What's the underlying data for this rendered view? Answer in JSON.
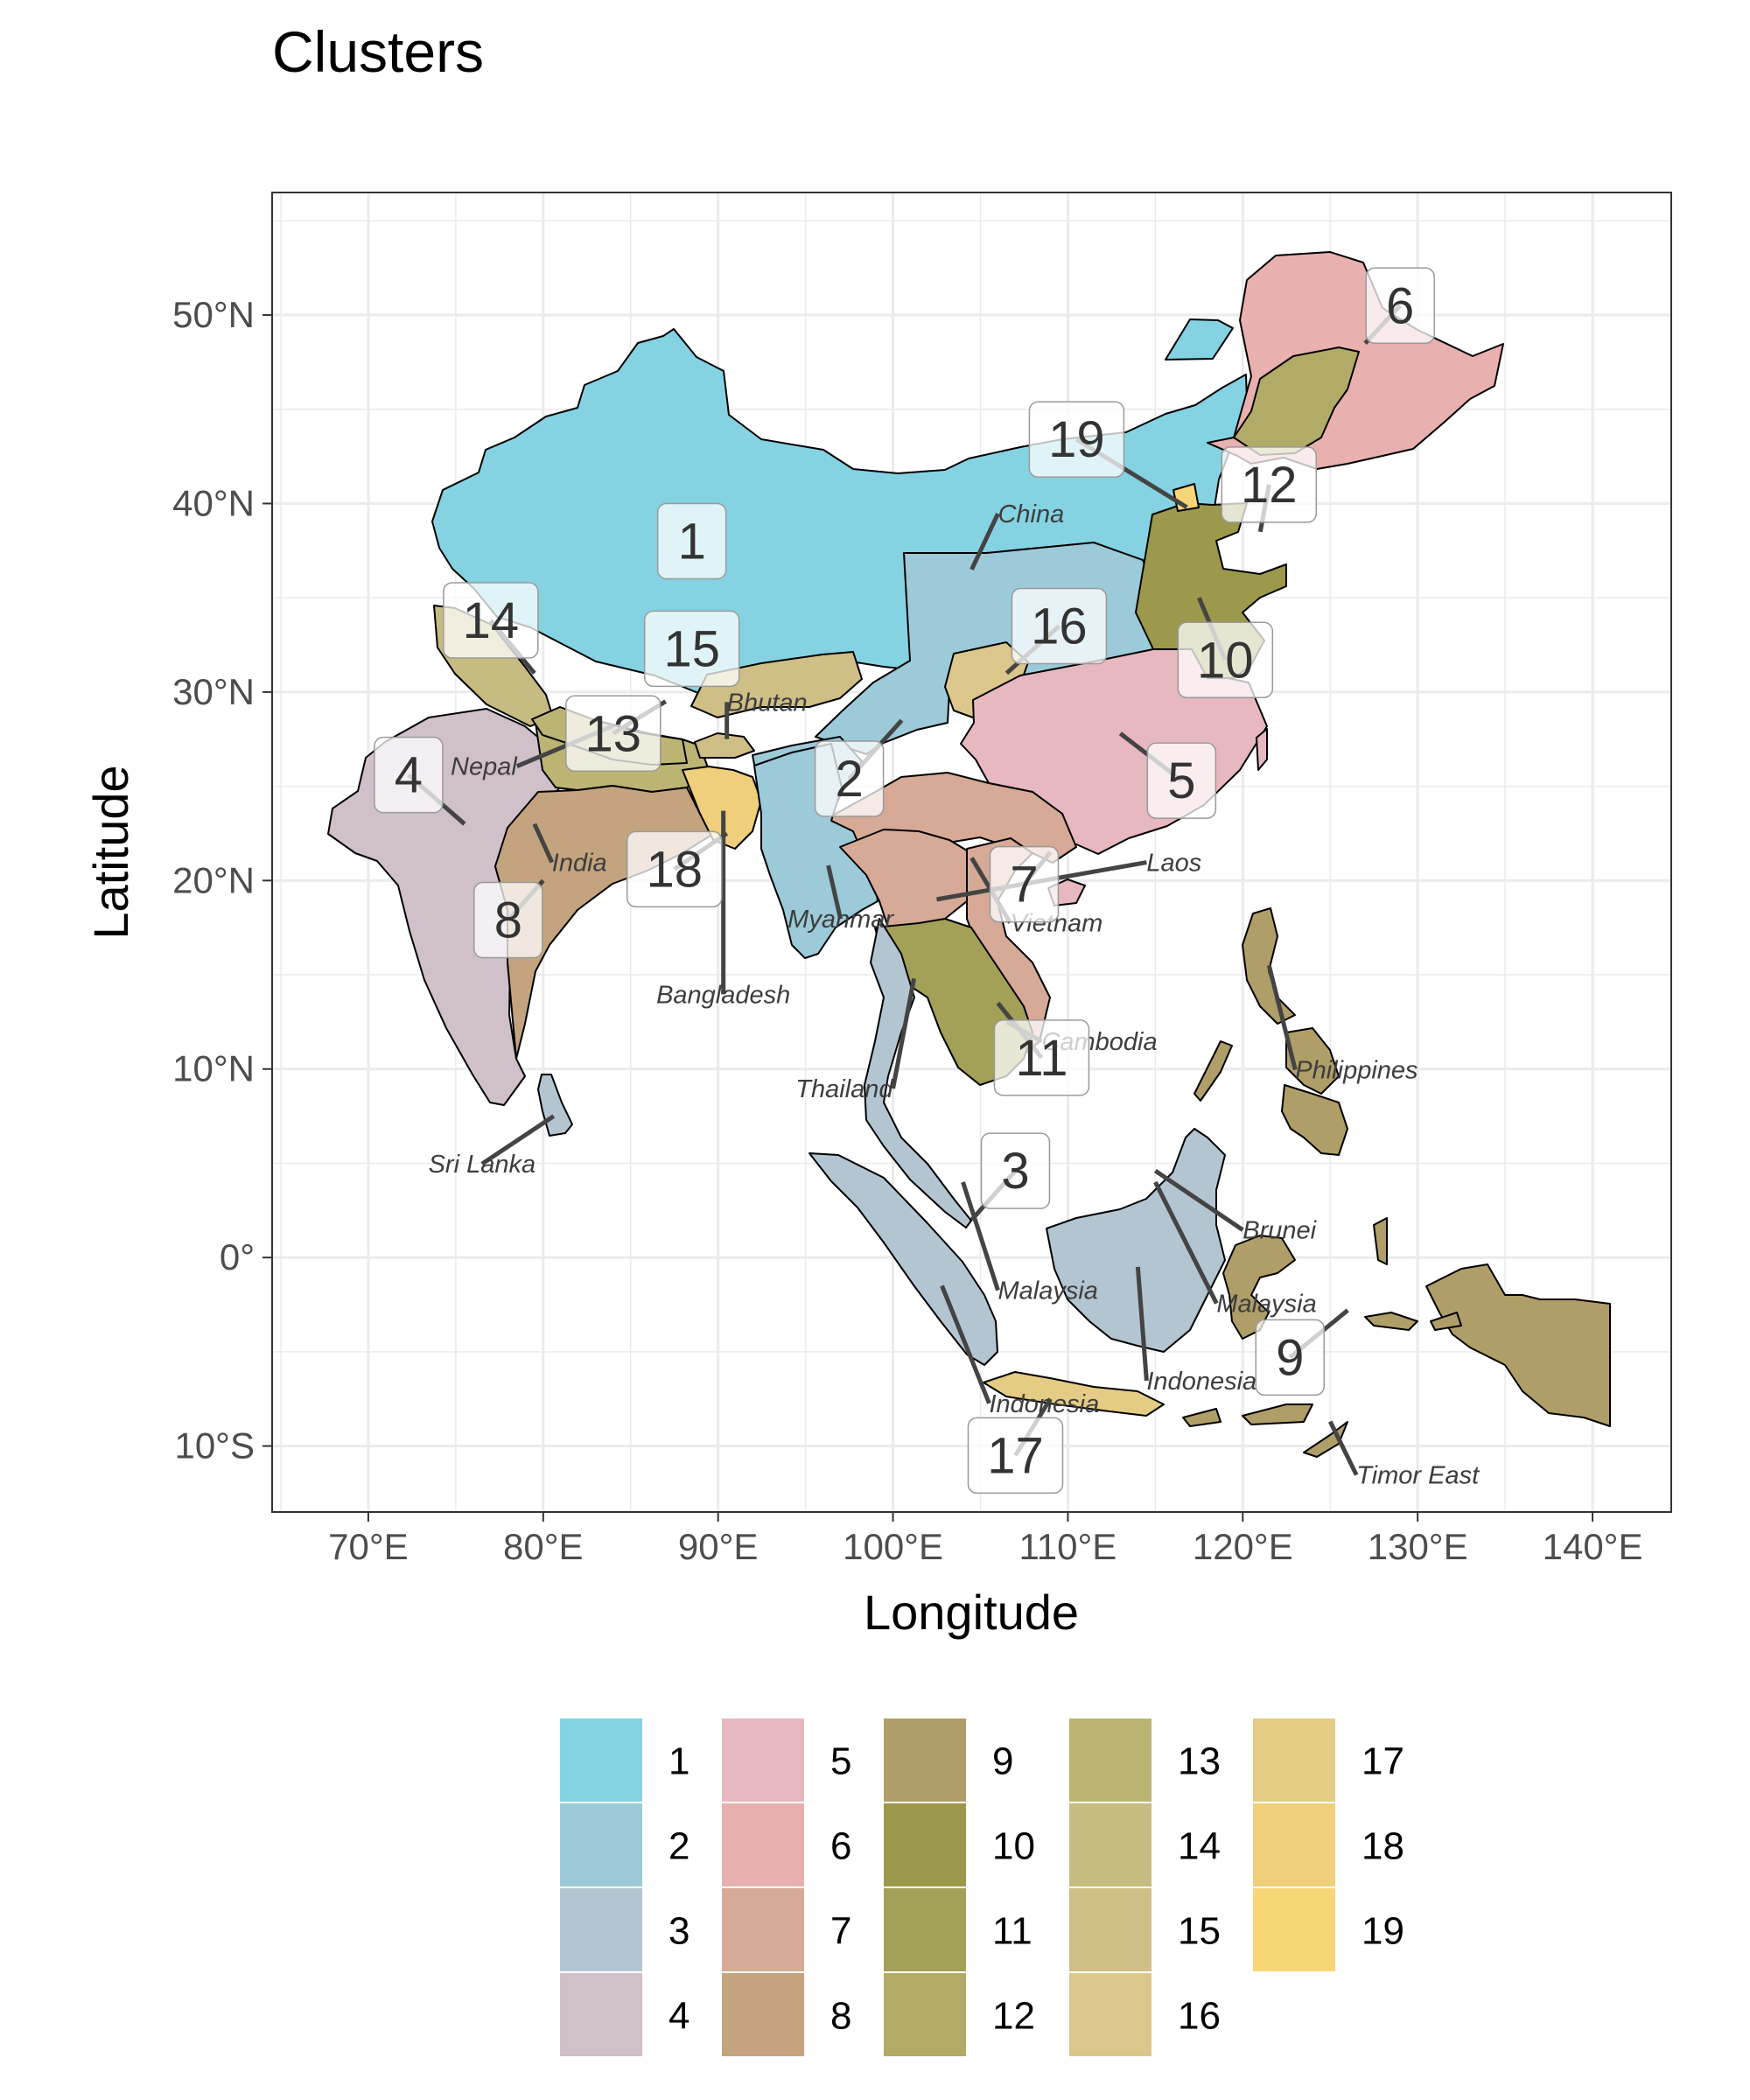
{
  "title": "Clusters",
  "axes": {
    "x_title": "Longitude",
    "y_title": "Latitude",
    "x_ticks": [
      {
        "lon": 70,
        "label": "70°E"
      },
      {
        "lon": 80,
        "label": "80°E"
      },
      {
        "lon": 90,
        "label": "90°E"
      },
      {
        "lon": 100,
        "label": "100°E"
      },
      {
        "lon": 110,
        "label": "110°E"
      },
      {
        "lon": 120,
        "label": "120°E"
      },
      {
        "lon": 130,
        "label": "130°E"
      },
      {
        "lon": 140,
        "label": "140°E"
      }
    ],
    "y_ticks": [
      {
        "lat": 50,
        "label": "50°N"
      },
      {
        "lat": 40,
        "label": "40°N"
      },
      {
        "lat": 30,
        "label": "30°N"
      },
      {
        "lat": 20,
        "label": "20°N"
      },
      {
        "lat": 10,
        "label": "10°N"
      },
      {
        "lat": 0,
        "label": "0°"
      },
      {
        "lat": -10,
        "label": "10°S"
      }
    ],
    "xlim": [
      64.5,
      144.5
    ],
    "ylim": [
      -13.5,
      56.5
    ]
  },
  "cluster_colors": {
    "1": "#85D3E2",
    "2": "#9DCAD9",
    "3": "#B3C5D0",
    "4": "#CFC0C9",
    "5": "#E7B8C0",
    "6": "#E8B0AF",
    "7": "#D6AA96",
    "8": "#C3A47F",
    "9": "#B09E68",
    "10": "#9C984C",
    "11": "#A3A057",
    "12": "#B1AB67",
    "13": "#BCB473",
    "14": "#C6BB80",
    "15": "#CFBE86",
    "16": "#DBC78B",
    "17": "#E5CC85",
    "18": "#EFCE7C",
    "19": "#F8D677"
  },
  "legend": {
    "columns": [
      [
        "1",
        "2",
        "3",
        "4"
      ],
      [
        "5",
        "6",
        "7",
        "8"
      ],
      [
        "9",
        "10",
        "11",
        "12"
      ],
      [
        "13",
        "14",
        "15",
        "16"
      ],
      [
        "17",
        "18",
        "19"
      ]
    ]
  },
  "cluster_labels": [
    {
      "id": "1",
      "lon": 88.5,
      "lat": 38.0,
      "pt_lon": 88.5,
      "pt_lat": 38.0
    },
    {
      "id": "2",
      "lon": 97.5,
      "lat": 25.4,
      "pt_lon": 100.5,
      "pt_lat": 28.5
    },
    {
      "id": "3",
      "lon": 107.0,
      "lat": 4.6,
      "pt_lon": 104.5,
      "pt_lat": 2.0
    },
    {
      "id": "4",
      "lon": 72.3,
      "lat": 25.6,
      "pt_lon": 75.5,
      "pt_lat": 23.0
    },
    {
      "id": "5",
      "lon": 116.5,
      "lat": 25.3,
      "pt_lon": 113.0,
      "pt_lat": 27.8
    },
    {
      "id": "6",
      "lon": 129.0,
      "lat": 50.5,
      "pt_lon": 127.0,
      "pt_lat": 48.5
    },
    {
      "id": "7",
      "lon": 107.5,
      "lat": 19.8,
      "pt_lon": 109.0,
      "pt_lat": 21.5
    },
    {
      "id": "8",
      "lon": 78.0,
      "lat": 17.9,
      "pt_lon": 80.0,
      "pt_lat": 20.0
    },
    {
      "id": "9",
      "lon": 122.7,
      "lat": -5.3,
      "pt_lon": 126.0,
      "pt_lat": -2.8
    },
    {
      "id": "10",
      "lon": 119.0,
      "lat": 31.7,
      "pt_lon": 117.5,
      "pt_lat": 35.0
    },
    {
      "id": "11",
      "lon": 108.5,
      "lat": 10.6,
      "pt_lon": 106.0,
      "pt_lat": 13.5
    },
    {
      "id": "12",
      "lon": 121.5,
      "lat": 41.0,
      "pt_lon": 121.0,
      "pt_lat": 38.5
    },
    {
      "id": "13",
      "lon": 84.0,
      "lat": 27.8,
      "pt_lon": 87.0,
      "pt_lat": 29.5
    },
    {
      "id": "14",
      "lon": 77.0,
      "lat": 33.8,
      "pt_lon": 79.5,
      "pt_lat": 31.0
    },
    {
      "id": "15",
      "lon": 88.5,
      "lat": 32.3,
      "pt_lon": 88.5,
      "pt_lat": 32.3
    },
    {
      "id": "16",
      "lon": 109.5,
      "lat": 33.5,
      "pt_lon": 106.5,
      "pt_lat": 31.0
    },
    {
      "id": "17",
      "lon": 107.0,
      "lat": -10.5,
      "pt_lon": 109.0,
      "pt_lat": -7.5
    },
    {
      "id": "18",
      "lon": 87.5,
      "lat": 20.6,
      "pt_lon": 90.5,
      "pt_lat": 22.5
    },
    {
      "id": "19",
      "lon": 110.5,
      "lat": 43.4,
      "pt_lon": 116.8,
      "pt_lat": 39.8
    }
  ],
  "country_labels": [
    {
      "text": "China",
      "lon": 106.0,
      "lat": 39.0,
      "anchor": "start",
      "pt_lon": 104.5,
      "pt_lat": 36.5
    },
    {
      "text": "Bhutan",
      "lon": 90.5,
      "lat": 29.0,
      "anchor": "start",
      "pt_lon": 90.5,
      "pt_lat": 27.5
    },
    {
      "text": "Nepal",
      "lon": 78.5,
      "lat": 25.6,
      "anchor": "end",
      "pt_lon": 84.0,
      "pt_lat": 28.2
    },
    {
      "text": "India",
      "lon": 80.5,
      "lat": 20.5,
      "anchor": "start",
      "pt_lon": 79.5,
      "pt_lat": 23.0
    },
    {
      "text": "Bangladesh",
      "lon": 90.3,
      "lat": 13.5,
      "anchor": "middle",
      "pt_lon": 90.3,
      "pt_lat": 23.7
    },
    {
      "text": "Myanmar",
      "lon": 97.0,
      "lat": 17.5,
      "anchor": "middle",
      "pt_lon": 96.3,
      "pt_lat": 20.8
    },
    {
      "text": "Laos",
      "lon": 114.5,
      "lat": 20.5,
      "anchor": "start",
      "pt_lon": 102.5,
      "pt_lat": 19.0
    },
    {
      "text": "Vietnam",
      "lon": 106.7,
      "lat": 17.3,
      "anchor": "start",
      "pt_lon": 104.5,
      "pt_lat": 21.2
    },
    {
      "text": "Cambodia",
      "lon": 108.5,
      "lat": 11.0,
      "anchor": "start",
      "pt_lon": 106.5,
      "pt_lat": 12.5
    },
    {
      "text": "Thailand",
      "lon": 100.0,
      "lat": 8.5,
      "anchor": "end",
      "pt_lon": 101.2,
      "pt_lat": 14.8
    },
    {
      "text": "Sri Lanka",
      "lon": 76.5,
      "lat": 4.5,
      "anchor": "middle",
      "pt_lon": 80.6,
      "pt_lat": 7.5
    },
    {
      "text": "Philippines",
      "lon": 123.0,
      "lat": 9.5,
      "anchor": "start",
      "pt_lon": 121.5,
      "pt_lat": 15.5
    },
    {
      "text": "Brunei",
      "lon": 120.0,
      "lat": 1.0,
      "anchor": "start",
      "pt_lon": 115.0,
      "pt_lat": 4.6
    },
    {
      "text": "Malaysia",
      "lon": 106.0,
      "lat": -2.2,
      "anchor": "start",
      "pt_lon": 104.0,
      "pt_lat": 4.0
    },
    {
      "text": "Malaysia",
      "lon": 118.5,
      "lat": -2.9,
      "anchor": "start",
      "pt_lon": 115.0,
      "pt_lat": 4.0
    },
    {
      "text": "Indonesia",
      "lon": 114.5,
      "lat": -7.0,
      "anchor": "start",
      "pt_lon": 114.0,
      "pt_lat": -0.5
    },
    {
      "text": "Indonesia",
      "lon": 105.5,
      "lat": -8.2,
      "anchor": "start",
      "pt_lon": 102.8,
      "pt_lat": -1.5
    },
    {
      "text": "Timor East",
      "lon": 126.5,
      "lat": -12.0,
      "anchor": "start",
      "pt_lon": 125.0,
      "pt_lat": -8.7
    }
  ]
}
